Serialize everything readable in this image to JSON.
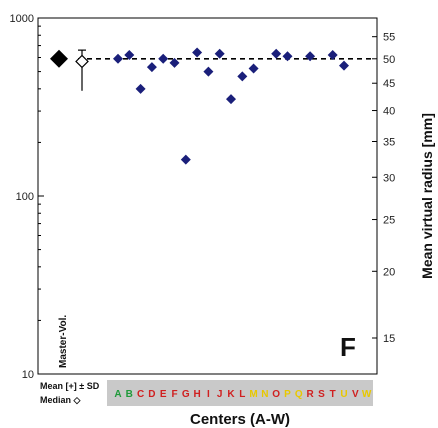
{
  "chart_data": {
    "type": "scatter",
    "panel_label": "F",
    "xlabel": "Centers (A-W)",
    "ylabel_right": "Mean virtual radius [mm]",
    "ylim": [
      10,
      1000
    ],
    "y_scale": "log",
    "y_ticks": [
      "10",
      "100",
      "1000"
    ],
    "right_ticks": [
      "15",
      "20",
      "25",
      "30",
      "35",
      "40",
      "45",
      "50",
      "55"
    ],
    "reference_line": 590,
    "master_label": "Master-Vol.",
    "master": {
      "mean": 590,
      "median": 570,
      "sd_low": 390,
      "sd_high": 660
    },
    "legend": {
      "mean_sd": "Mean [+] ± SD",
      "median": "Median ◇"
    },
    "categories": [
      "A",
      "B",
      "C",
      "D",
      "E",
      "F",
      "G",
      "H",
      "I",
      "J",
      "K",
      "L",
      "M",
      "N",
      "O",
      "P",
      "Q",
      "R",
      "S",
      "T",
      "U",
      "V",
      "W"
    ],
    "category_colors": [
      "#1f9a3a",
      "#1f9a3a",
      "#d02020",
      "#d02020",
      "#d02020",
      "#d02020",
      "#d02020",
      "#d02020",
      "#d02020",
      "#d02020",
      "#d02020",
      "#d02020",
      "#e8c800",
      "#e8c800",
      "#d02020",
      "#e8c800",
      "#e8c800",
      "#d02020",
      "#d02020",
      "#d02020",
      "#e8c800",
      "#d02020",
      "#e8c800"
    ],
    "values": [
      590,
      620,
      400,
      530,
      590,
      560,
      160,
      640,
      500,
      630,
      350,
      470,
      520,
      null,
      630,
      610,
      null,
      610,
      null,
      620,
      540,
      null,
      null
    ],
    "marker_color": "#1a1f7a",
    "grid": false
  }
}
